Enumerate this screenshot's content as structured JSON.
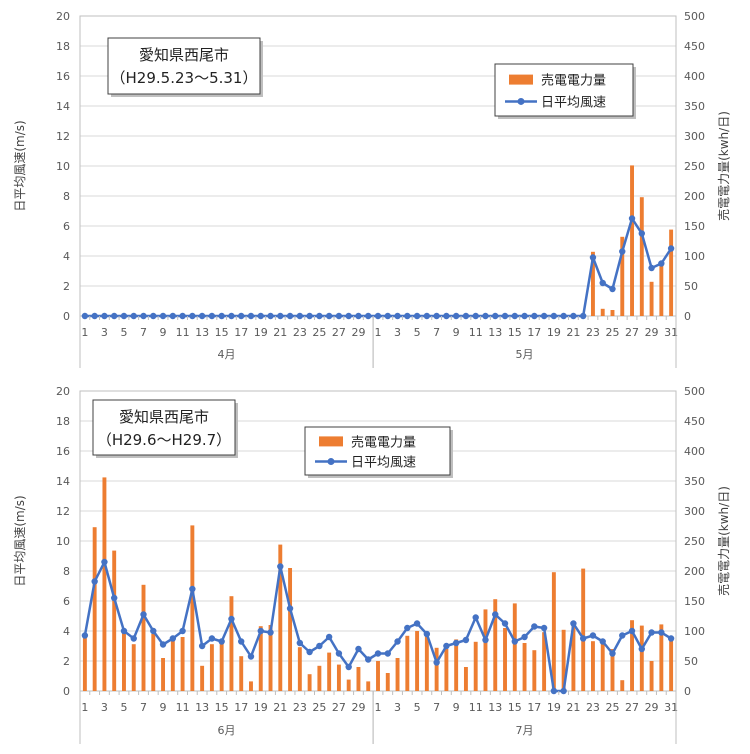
{
  "chart_data": [
    {
      "type": "bar+line",
      "annotation": [
        "愛知県西尾市",
        "（H29.5.23～5.31）"
      ],
      "ylabel_left": "日平均風速(m/s)",
      "ylabel_right": "売電電力量(kwh/日)",
      "ylim_left": [
        0,
        20
      ],
      "ylim_right": [
        0,
        500
      ],
      "yticks_left": [
        "0",
        "2",
        "4",
        "6",
        "8",
        "10",
        "12",
        "14",
        "16",
        "18",
        "20"
      ],
      "yticks_right": [
        "0",
        "50",
        "100",
        "150",
        "200",
        "250",
        "300",
        "350",
        "400",
        "450",
        "500"
      ],
      "legend": {
        "bar": "売電電力量",
        "line": "日平均風速",
        "position": "top-right"
      },
      "months": [
        {
          "label": "4月",
          "days": 30,
          "tick_labels": [
            "1",
            "3",
            "5",
            "7",
            "9",
            "11",
            "13",
            "15",
            "17",
            "19",
            "21",
            "23",
            "25",
            "27",
            "29"
          ]
        },
        {
          "label": "5月",
          "days": 31,
          "tick_labels": [
            "1",
            "3",
            "5",
            "7",
            "9",
            "11",
            "13",
            "15",
            "17",
            "19",
            "21",
            "23",
            "25",
            "27",
            "29",
            "31"
          ]
        }
      ],
      "bars_kwh": [
        0,
        0,
        0,
        0,
        0,
        0,
        0,
        0,
        0,
        0,
        0,
        0,
        0,
        0,
        0,
        0,
        0,
        0,
        0,
        0,
        0,
        0,
        0,
        0,
        0,
        0,
        0,
        0,
        0,
        0,
        0,
        0,
        0,
        0,
        0,
        0,
        0,
        0,
        0,
        0,
        0,
        0,
        0,
        0,
        0,
        0,
        0,
        0,
        0,
        0,
        0,
        0,
        107,
        12,
        10,
        132,
        251,
        198,
        57,
        91,
        144
      ],
      "wind_ms": [
        0,
        0,
        0,
        0,
        0,
        0,
        0,
        0,
        0,
        0,
        0,
        0,
        0,
        0,
        0,
        0,
        0,
        0,
        0,
        0,
        0,
        0,
        0,
        0,
        0,
        0,
        0,
        0,
        0,
        0,
        0,
        0,
        0,
        0,
        0,
        0,
        0,
        0,
        0,
        0,
        0,
        0,
        0,
        0,
        0,
        0,
        0,
        0,
        0,
        0,
        0,
        0,
        3.9,
        2.2,
        1.8,
        4.3,
        6.5,
        5.5,
        3.2,
        3.5,
        4.5
      ]
    },
    {
      "type": "bar+line",
      "annotation": [
        "愛知県西尾市",
        "（H29.6～H29.7）"
      ],
      "ylabel_left": "日平均風速(m/s)",
      "ylabel_right": "売電電力量(kwh/日)",
      "ylim_left": [
        0,
        20
      ],
      "ylim_right": [
        0,
        500
      ],
      "yticks_left": [
        "0",
        "2",
        "4",
        "6",
        "8",
        "10",
        "12",
        "14",
        "16",
        "18",
        "20"
      ],
      "yticks_right": [
        "0",
        "50",
        "100",
        "150",
        "200",
        "250",
        "300",
        "350",
        "400",
        "450",
        "500"
      ],
      "legend": {
        "bar": "売電電力量",
        "line": "日平均風速",
        "position": "top-center"
      },
      "months": [
        {
          "label": "6月",
          "days": 30,
          "tick_labels": [
            "1",
            "3",
            "5",
            "7",
            "9",
            "11",
            "13",
            "15",
            "17",
            "19",
            "21",
            "23",
            "25",
            "27",
            "29"
          ]
        },
        {
          "label": "7月",
          "days": 31,
          "tick_labels": [
            "1",
            "3",
            "5",
            "7",
            "9",
            "11",
            "13",
            "15",
            "17",
            "19",
            "21",
            "23",
            "25",
            "27",
            "29",
            "31"
          ]
        }
      ],
      "bars_kwh": [
        91,
        273,
        356,
        234,
        100,
        78,
        177,
        95,
        55,
        85,
        90,
        276,
        42,
        78,
        86,
        158,
        58,
        16,
        108,
        110,
        244,
        205,
        73,
        28,
        42,
        64,
        44,
        19,
        40,
        16,
        50,
        30,
        55,
        92,
        100,
        95,
        72,
        70,
        86,
        40,
        82,
        136,
        153,
        105,
        146,
        80,
        68,
        98,
        198,
        102,
        112,
        204,
        83,
        80,
        70,
        18,
        118,
        109,
        50,
        111,
        85
      ],
      "wind_ms": [
        3.7,
        7.3,
        8.6,
        6.2,
        4.0,
        3.5,
        5.1,
        4.0,
        3.1,
        3.5,
        4.0,
        6.8,
        3.0,
        3.5,
        3.3,
        4.8,
        3.3,
        2.3,
        4.0,
        3.9,
        8.3,
        5.5,
        3.2,
        2.6,
        3.0,
        3.6,
        2.5,
        1.6,
        2.8,
        2.1,
        2.5,
        2.5,
        3.3,
        4.2,
        4.5,
        3.8,
        1.9,
        3.0,
        3.2,
        3.4,
        4.9,
        3.4,
        5.1,
        4.5,
        3.3,
        3.6,
        4.3,
        4.2,
        0,
        0,
        4.5,
        3.5,
        3.7,
        3.3,
        2.5,
        3.7,
        4.0,
        2.8,
        3.9,
        3.9,
        3.5
      ]
    }
  ]
}
